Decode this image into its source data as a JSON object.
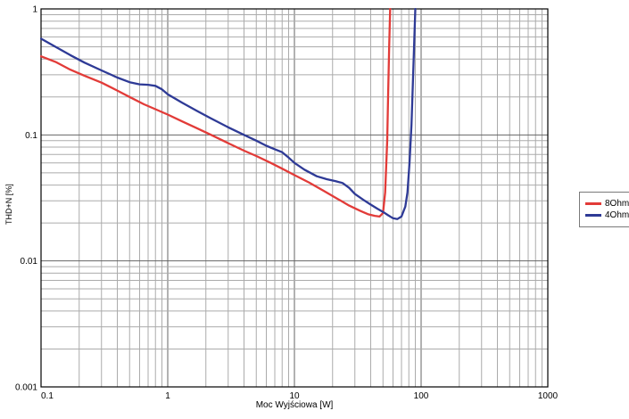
{
  "chart_data": {
    "type": "line",
    "title": "",
    "xlabel": "Moc Wyjściowa [W]",
    "ylabel": "THD+N [%]",
    "xscale": "log",
    "yscale": "log",
    "xlim": [
      0.1,
      1000
    ],
    "ylim": [
      0.001,
      1
    ],
    "grid": true,
    "grid_color_minor": "#ababab",
    "grid_color_major": "#666666",
    "border_color": "#000000",
    "legend_position": "right-outside",
    "xticks": {
      "values": [
        0.1,
        1,
        10,
        100,
        1000
      ],
      "labels": [
        "0.1",
        "1",
        "10",
        "100",
        "1000"
      ]
    },
    "yticks": {
      "values": [
        1,
        0.1,
        0.01,
        0.001
      ],
      "labels": [
        "1",
        "0.1",
        "0.01",
        "0.001"
      ]
    },
    "series": [
      {
        "name": "8Ohm",
        "color": "#e23b38",
        "points": [
          [
            0.1,
            0.42
          ],
          [
            0.13,
            0.38
          ],
          [
            0.17,
            0.33
          ],
          [
            0.22,
            0.295
          ],
          [
            0.3,
            0.26
          ],
          [
            0.4,
            0.225
          ],
          [
            0.5,
            0.2
          ],
          [
            0.65,
            0.175
          ],
          [
            0.8,
            0.16
          ],
          [
            1,
            0.145
          ],
          [
            1.3,
            0.128
          ],
          [
            1.7,
            0.113
          ],
          [
            2.2,
            0.1
          ],
          [
            3,
            0.086
          ],
          [
            4,
            0.075
          ],
          [
            5,
            0.068
          ],
          [
            6.5,
            0.06
          ],
          [
            8,
            0.054
          ],
          [
            10,
            0.048
          ],
          [
            13,
            0.042
          ],
          [
            17,
            0.036
          ],
          [
            22,
            0.031
          ],
          [
            27,
            0.0275
          ],
          [
            33,
            0.025
          ],
          [
            38,
            0.0235
          ],
          [
            43,
            0.0228
          ],
          [
            47,
            0.0225
          ],
          [
            50,
            0.024
          ],
          [
            52,
            0.035
          ],
          [
            54,
            0.09
          ],
          [
            55,
            0.22
          ],
          [
            56,
            0.5
          ],
          [
            57,
            1.0
          ]
        ]
      },
      {
        "name": "4Ohm",
        "color": "#2e3a96",
        "points": [
          [
            0.1,
            0.58
          ],
          [
            0.13,
            0.5
          ],
          [
            0.17,
            0.43
          ],
          [
            0.22,
            0.375
          ],
          [
            0.3,
            0.325
          ],
          [
            0.4,
            0.285
          ],
          [
            0.5,
            0.262
          ],
          [
            0.6,
            0.252
          ],
          [
            0.7,
            0.25
          ],
          [
            0.8,
            0.245
          ],
          [
            0.9,
            0.23
          ],
          [
            1,
            0.21
          ],
          [
            1.3,
            0.18
          ],
          [
            1.7,
            0.155
          ],
          [
            2.2,
            0.135
          ],
          [
            3,
            0.115
          ],
          [
            4,
            0.1
          ],
          [
            5,
            0.09
          ],
          [
            6,
            0.082
          ],
          [
            7,
            0.077
          ],
          [
            8,
            0.073
          ],
          [
            9,
            0.066
          ],
          [
            10,
            0.06
          ],
          [
            12,
            0.053
          ],
          [
            15,
            0.047
          ],
          [
            18,
            0.0445
          ],
          [
            21,
            0.043
          ],
          [
            24,
            0.0415
          ],
          [
            27,
            0.038
          ],
          [
            30,
            0.034
          ],
          [
            35,
            0.0305
          ],
          [
            40,
            0.028
          ],
          [
            45,
            0.026
          ],
          [
            50,
            0.0245
          ],
          [
            55,
            0.023
          ],
          [
            60,
            0.0218
          ],
          [
            65,
            0.0215
          ],
          [
            70,
            0.0225
          ],
          [
            75,
            0.027
          ],
          [
            78,
            0.035
          ],
          [
            81,
            0.06
          ],
          [
            84,
            0.12
          ],
          [
            86,
            0.25
          ],
          [
            88,
            0.5
          ],
          [
            90,
            1.0
          ]
        ]
      }
    ]
  }
}
